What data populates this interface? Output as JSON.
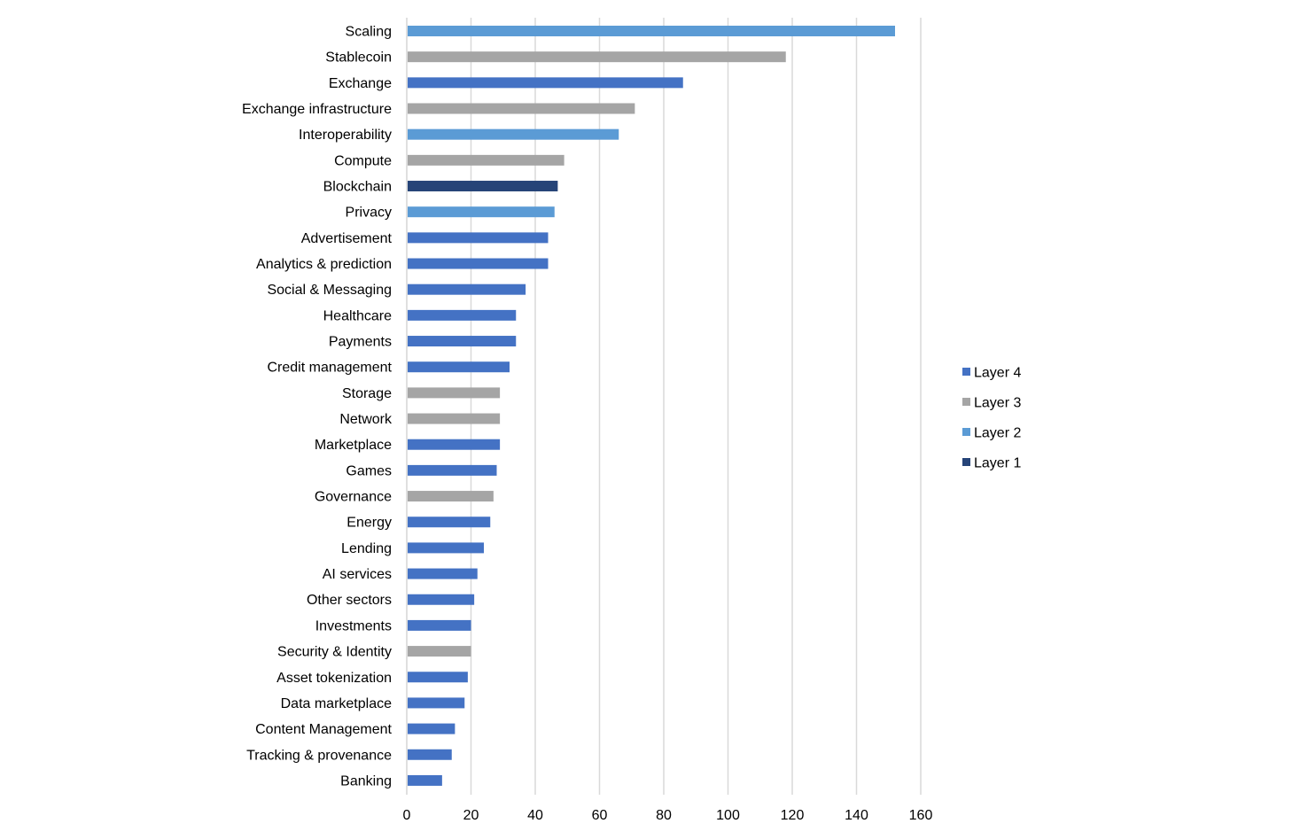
{
  "chart_data": {
    "type": "bar",
    "orientation": "horizontal",
    "title": "",
    "xlabel": "",
    "ylabel": "",
    "xlim": [
      0,
      160
    ],
    "x_ticks": [
      "0",
      "20",
      "40",
      "60",
      "80",
      "100",
      "120",
      "140",
      "160"
    ],
    "grid": "vertical",
    "legend_position": "right",
    "legend": [
      {
        "name": "Layer 4",
        "color": "#4472c4"
      },
      {
        "name": "Layer 3",
        "color": "#a5a5a5"
      },
      {
        "name": "Layer 2",
        "color": "#5b9bd5"
      },
      {
        "name": "Layer 1",
        "color": "#264478"
      }
    ],
    "categories": [
      "Scaling",
      "Stablecoin",
      "Exchange",
      "Exchange infrastructure",
      "Interoperability",
      "Compute",
      "Blockchain",
      "Privacy",
      "Advertisement",
      "Analytics & prediction",
      "Social & Messaging",
      "Healthcare",
      "Payments",
      "Credit management",
      "Storage",
      "Network",
      "Marketplace",
      "Games",
      "Governance",
      "Energy",
      "Lending",
      "AI services",
      "Other sectors",
      "Investments",
      "Security & Identity",
      "Asset tokenization",
      "Data marketplace",
      "Content Management",
      "Tracking & provenance",
      "Banking"
    ],
    "values": [
      152,
      118,
      86,
      71,
      66,
      49,
      47,
      46,
      44,
      44,
      37,
      34,
      34,
      32,
      29,
      29,
      29,
      28,
      27,
      26,
      24,
      22,
      21,
      20,
      20,
      19,
      18,
      15,
      14,
      11
    ],
    "layers": [
      "Layer 2",
      "Layer 3",
      "Layer 4",
      "Layer 3",
      "Layer 2",
      "Layer 3",
      "Layer 1",
      "Layer 2",
      "Layer 4",
      "Layer 4",
      "Layer 4",
      "Layer 4",
      "Layer 4",
      "Layer 4",
      "Layer 3",
      "Layer 3",
      "Layer 4",
      "Layer 4",
      "Layer 3",
      "Layer 4",
      "Layer 4",
      "Layer 4",
      "Layer 4",
      "Layer 4",
      "Layer 3",
      "Layer 4",
      "Layer 4",
      "Layer 4",
      "Layer 4",
      "Layer 4"
    ]
  }
}
